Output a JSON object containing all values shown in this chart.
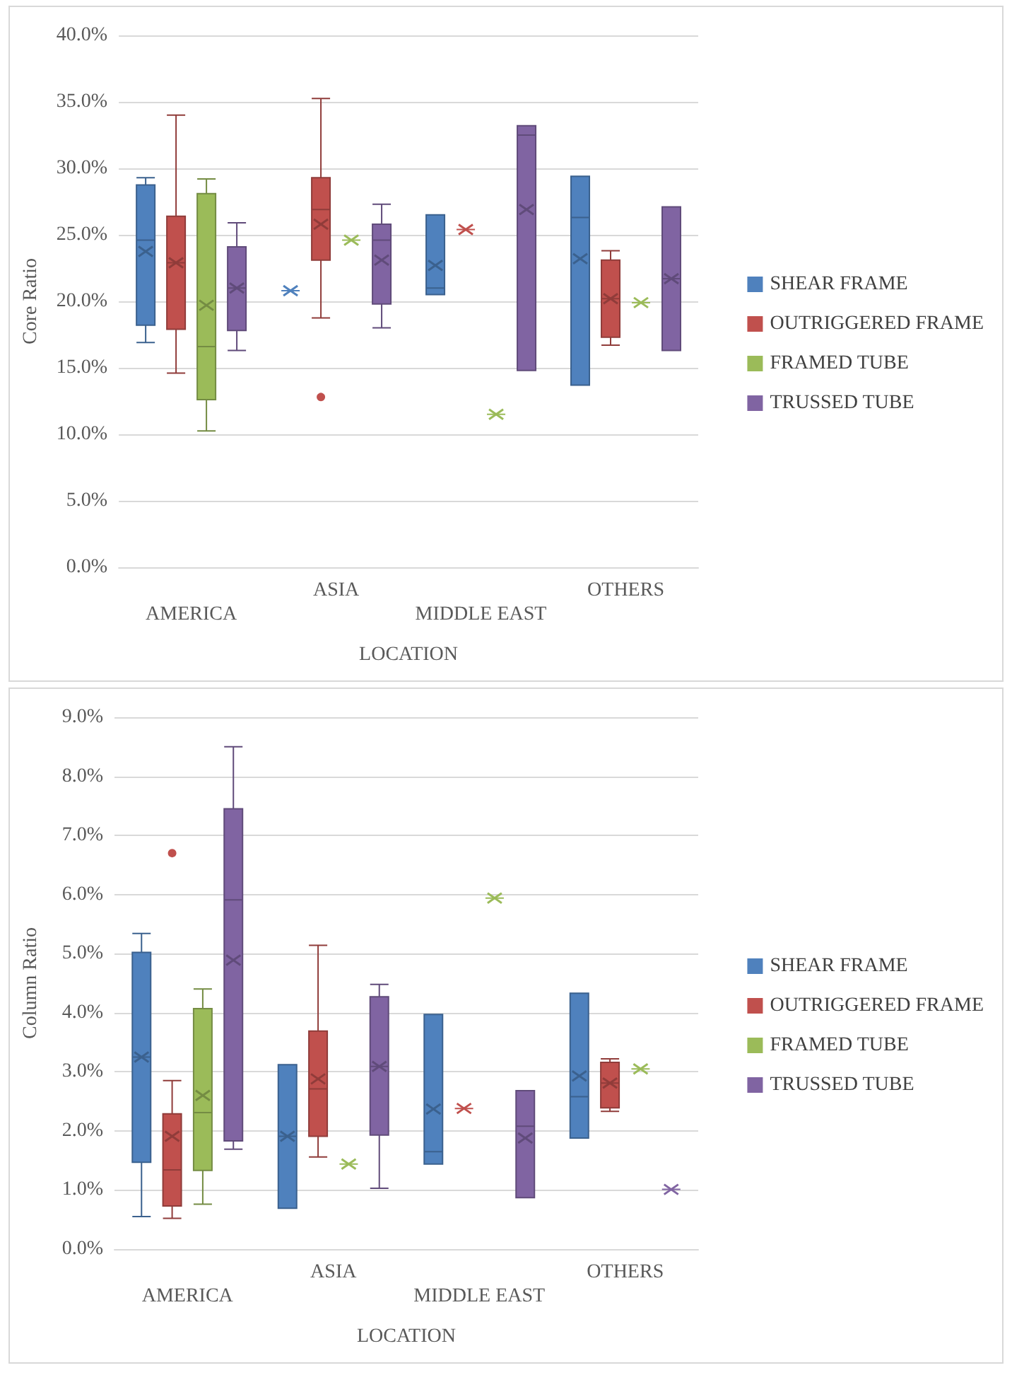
{
  "chart_data": [
    {
      "type": "box",
      "ylabel": "Core Ratio",
      "xlabel": "LOCATION",
      "categories": [
        "AMERICA",
        "ASIA",
        "MIDDLE EAST",
        "OTHERS"
      ],
      "ylim": [
        0,
        40
      ],
      "yticks": [
        {
          "value": 0,
          "label": "0.0%"
        },
        {
          "value": 5,
          "label": "5.0%"
        },
        {
          "value": 10,
          "label": "10.0%"
        },
        {
          "value": 15,
          "label": "15.0%"
        },
        {
          "value": 20,
          "label": "20.0%"
        },
        {
          "value": 25,
          "label": "25.0%"
        },
        {
          "value": 30,
          "label": "30.0%"
        },
        {
          "value": 35,
          "label": "35.0%"
        },
        {
          "value": 40,
          "label": "40.0%"
        }
      ],
      "grid": "y",
      "legend": "right",
      "series": [
        {
          "name": "SHEAR FRAME",
          "color": "#4f81bd",
          "boxes": [
            {
              "low": 16.9,
              "q1": 18.2,
              "median": 24.6,
              "q3": 28.75,
              "high": 29.3,
              "mean": 23.75
            },
            {
              "low": 20.8,
              "q1": 20.8,
              "median": 20.8,
              "q3": 20.8,
              "high": 20.8,
              "mean": 20.8
            },
            {
              "low": 20.5,
              "q1": 20.5,
              "median": 21.0,
              "q3": 26.5,
              "high": 26.5,
              "mean": 22.7
            },
            {
              "low": 13.7,
              "q1": 13.7,
              "median": 26.3,
              "q3": 29.4,
              "high": 29.4,
              "mean": 23.2
            }
          ]
        },
        {
          "name": "OUTRIGGERED FRAME",
          "color": "#c0504d",
          "boxes": [
            {
              "low": 14.6,
              "q1": 17.9,
              "median": 22.9,
              "q3": 26.4,
              "high": 34.0,
              "mean": 22.9
            },
            {
              "low": 18.75,
              "q1": 23.1,
              "median": 26.9,
              "q3": 29.3,
              "high": 35.25,
              "mean": 25.8,
              "outliers": [
                12.8
              ]
            },
            {
              "low": 25.4,
              "q1": 25.4,
              "median": 25.4,
              "q3": 25.4,
              "high": 25.4,
              "mean": 25.4
            },
            {
              "low": 16.7,
              "q1": 17.3,
              "median": 20.2,
              "q3": 23.1,
              "high": 23.8,
              "mean": 20.2
            }
          ]
        },
        {
          "name": "FRAMED TUBE",
          "color": "#9bbb59",
          "boxes": [
            {
              "low": 10.25,
              "q1": 12.6,
              "median": 16.6,
              "q3": 28.1,
              "high": 29.2,
              "mean": 19.7
            },
            {
              "low": 24.6,
              "q1": 24.6,
              "median": 24.6,
              "q3": 24.6,
              "high": 24.6,
              "mean": 24.6
            },
            {
              "low": 11.5,
              "q1": 11.5,
              "median": 11.5,
              "q3": 11.5,
              "high": 11.5,
              "mean": 11.5
            },
            {
              "low": 19.9,
              "q1": 19.9,
              "median": 19.9,
              "q3": 19.9,
              "high": 19.9,
              "mean": 19.9
            }
          ]
        },
        {
          "name": "TRUSSED TUBE",
          "color": "#8064a2",
          "boxes": [
            {
              "low": 16.3,
              "q1": 17.8,
              "median": 21.0,
              "q3": 24.1,
              "high": 25.9,
              "mean": 21.0
            },
            {
              "low": 18.0,
              "q1": 19.8,
              "median": 24.6,
              "q3": 25.8,
              "high": 27.3,
              "mean": 23.1
            },
            {
              "low": 14.8,
              "q1": 14.8,
              "median": 32.5,
              "q3": 33.2,
              "high": 33.2,
              "mean": 26.9
            },
            {
              "low": 16.3,
              "q1": 16.3,
              "median": 21.7,
              "q3": 27.1,
              "high": 27.1,
              "mean": 21.7
            }
          ]
        }
      ]
    },
    {
      "type": "box",
      "ylabel": "Column Ratio",
      "xlabel": "LOCATION",
      "categories": [
        "AMERICA",
        "ASIA",
        "MIDDLE EAST",
        "OTHERS"
      ],
      "ylim": [
        0,
        9
      ],
      "yticks": [
        {
          "value": 0,
          "label": "0.0%"
        },
        {
          "value": 1,
          "label": "1.0%"
        },
        {
          "value": 2,
          "label": "2.0%"
        },
        {
          "value": 3,
          "label": "3.0%"
        },
        {
          "value": 4,
          "label": "4.0%"
        },
        {
          "value": 5,
          "label": "5.0%"
        },
        {
          "value": 6,
          "label": "6.0%"
        },
        {
          "value": 7,
          "label": "7.0%"
        },
        {
          "value": 8,
          "label": "8.0%"
        },
        {
          "value": 9,
          "label": "9.0%"
        }
      ],
      "grid": "y",
      "legend": "right",
      "series": [
        {
          "name": "SHEAR FRAME",
          "color": "#4f81bd",
          "boxes": [
            {
              "low": 0.55,
              "q1": 1.47,
              "median": 3.25,
              "q3": 5.02,
              "high": 5.34,
              "mean": 3.25
            },
            {
              "low": 0.69,
              "q1": 0.69,
              "median": 1.91,
              "q3": 3.12,
              "high": 3.12,
              "mean": 1.91
            },
            {
              "low": 1.44,
              "q1": 1.44,
              "median": 1.65,
              "q3": 3.97,
              "high": 3.97,
              "mean": 2.37
            },
            {
              "low": 1.88,
              "q1": 1.88,
              "median": 2.58,
              "q3": 4.33,
              "high": 4.33,
              "mean": 2.93
            }
          ]
        },
        {
          "name": "OUTRIGGERED FRAME",
          "color": "#c0504d",
          "boxes": [
            {
              "low": 0.52,
              "q1": 0.73,
              "median": 1.34,
              "q3": 2.29,
              "high": 2.85,
              "mean": 1.91,
              "outliers": [
                6.7
              ]
            },
            {
              "low": 1.56,
              "q1": 1.91,
              "median": 2.71,
              "q3": 3.69,
              "high": 5.14,
              "mean": 2.88
            },
            {
              "low": 2.38,
              "q1": 2.38,
              "median": 2.38,
              "q3": 2.38,
              "high": 2.38,
              "mean": 2.38
            },
            {
              "low": 2.33,
              "q1": 2.39,
              "median": 2.81,
              "q3": 3.16,
              "high": 3.22,
              "mean": 2.81
            }
          ]
        },
        {
          "name": "FRAMED TUBE",
          "color": "#9bbb59",
          "boxes": [
            {
              "low": 0.76,
              "q1": 1.33,
              "median": 2.31,
              "q3": 4.07,
              "high": 4.4,
              "mean": 2.6
            },
            {
              "low": 1.44,
              "q1": 1.44,
              "median": 1.44,
              "q3": 1.44,
              "high": 1.44,
              "mean": 1.44
            },
            {
              "low": 5.94,
              "q1": 5.94,
              "median": 5.94,
              "q3": 5.94,
              "high": 5.94,
              "mean": 5.94
            },
            {
              "low": 3.05,
              "q1": 3.05,
              "median": 3.05,
              "q3": 3.05,
              "high": 3.05,
              "mean": 3.05
            }
          ]
        },
        {
          "name": "TRUSSED TUBE",
          "color": "#8064a2",
          "boxes": [
            {
              "low": 1.69,
              "q1": 1.83,
              "median": 5.91,
              "q3": 7.45,
              "high": 8.5,
              "mean": 4.89
            },
            {
              "low": 1.03,
              "q1": 1.93,
              "median": 3.09,
              "q3": 4.27,
              "high": 4.48,
              "mean": 3.09
            },
            {
              "low": 0.87,
              "q1": 0.87,
              "median": 2.08,
              "q3": 2.68,
              "high": 2.68,
              "mean": 1.88
            },
            {
              "low": 1.01,
              "q1": 1.01,
              "median": 1.01,
              "q3": 1.01,
              "high": 1.01,
              "mean": 1.01
            }
          ]
        }
      ]
    }
  ]
}
